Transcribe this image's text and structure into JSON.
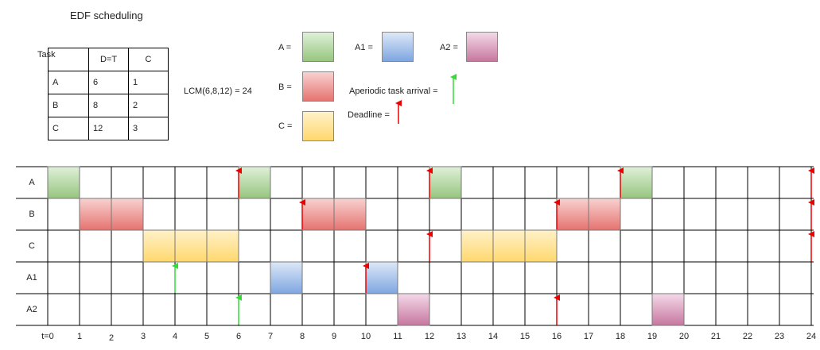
{
  "title": "EDF scheduling",
  "task_table": {
    "headers": [
      "Task",
      "D=T",
      "C"
    ],
    "rows": [
      [
        "A",
        "6",
        "1"
      ],
      [
        "B",
        "8",
        "2"
      ],
      [
        "C",
        "12",
        "3"
      ]
    ]
  },
  "lcm": "LCM(6,8,12) = 24",
  "legend": {
    "items": [
      {
        "label": "A =",
        "color_top": "#dff0d8",
        "color_bottom": "#97c57f"
      },
      {
        "label": "A1 =",
        "color_top": "#dde8f8",
        "color_bottom": "#7ea6e0"
      },
      {
        "label": "A2 =",
        "color_top": "#f3d9e8",
        "color_bottom": "#c7779f"
      },
      {
        "label": "B =",
        "color_top": "#f8d2d0",
        "color_bottom": "#e57370"
      },
      {
        "label": "C =",
        "color_top": "#fff1c8",
        "color_bottom": "#ffd86d"
      }
    ],
    "aperiodic": "Aperiodic task arrival =",
    "deadline": "Deadline ="
  },
  "colors": {
    "aperiodic_arrow": "#33dd33",
    "deadline_arrow": "#ee0000"
  },
  "schedule": {
    "rows": [
      "A",
      "B",
      "C",
      "A1",
      "A2"
    ],
    "ticks": [
      "t=0",
      "1",
      "2",
      "3",
      "4",
      "5",
      "6",
      "7",
      "8",
      "9",
      "10",
      "11",
      "12",
      "13",
      "14",
      "15",
      "16",
      "17",
      "18",
      "19",
      "20",
      "21",
      "22",
      "23",
      "24"
    ],
    "blocks": [
      {
        "row": 0,
        "start": 0,
        "end": 1,
        "task": "A"
      },
      {
        "row": 0,
        "start": 6,
        "end": 7,
        "task": "A"
      },
      {
        "row": 0,
        "start": 12,
        "end": 13,
        "task": "A"
      },
      {
        "row": 0,
        "start": 18,
        "end": 19,
        "task": "A"
      },
      {
        "row": 1,
        "start": 1,
        "end": 3,
        "task": "B"
      },
      {
        "row": 1,
        "start": 8,
        "end": 10,
        "task": "B"
      },
      {
        "row": 1,
        "start": 16,
        "end": 18,
        "task": "B"
      },
      {
        "row": 2,
        "start": 3,
        "end": 6,
        "task": "C"
      },
      {
        "row": 2,
        "start": 13,
        "end": 16,
        "task": "C"
      },
      {
        "row": 3,
        "start": 7,
        "end": 8,
        "task": "A1"
      },
      {
        "row": 3,
        "start": 10,
        "end": 11,
        "task": "A1"
      },
      {
        "row": 4,
        "start": 11,
        "end": 12,
        "task": "A2"
      },
      {
        "row": 4,
        "start": 19,
        "end": 20,
        "task": "A2"
      }
    ],
    "deadlines": [
      {
        "row": 0,
        "t": 6
      },
      {
        "row": 0,
        "t": 12
      },
      {
        "row": 0,
        "t": 18
      },
      {
        "row": 0,
        "t": 24
      },
      {
        "row": 1,
        "t": 8
      },
      {
        "row": 1,
        "t": 16
      },
      {
        "row": 1,
        "t": 24
      },
      {
        "row": 2,
        "t": 12
      },
      {
        "row": 2,
        "t": 24
      },
      {
        "row": 3,
        "t": 10
      },
      {
        "row": 4,
        "t": 16
      }
    ],
    "arrivals": [
      {
        "row": 3,
        "t": 4
      },
      {
        "row": 4,
        "t": 6
      }
    ]
  }
}
